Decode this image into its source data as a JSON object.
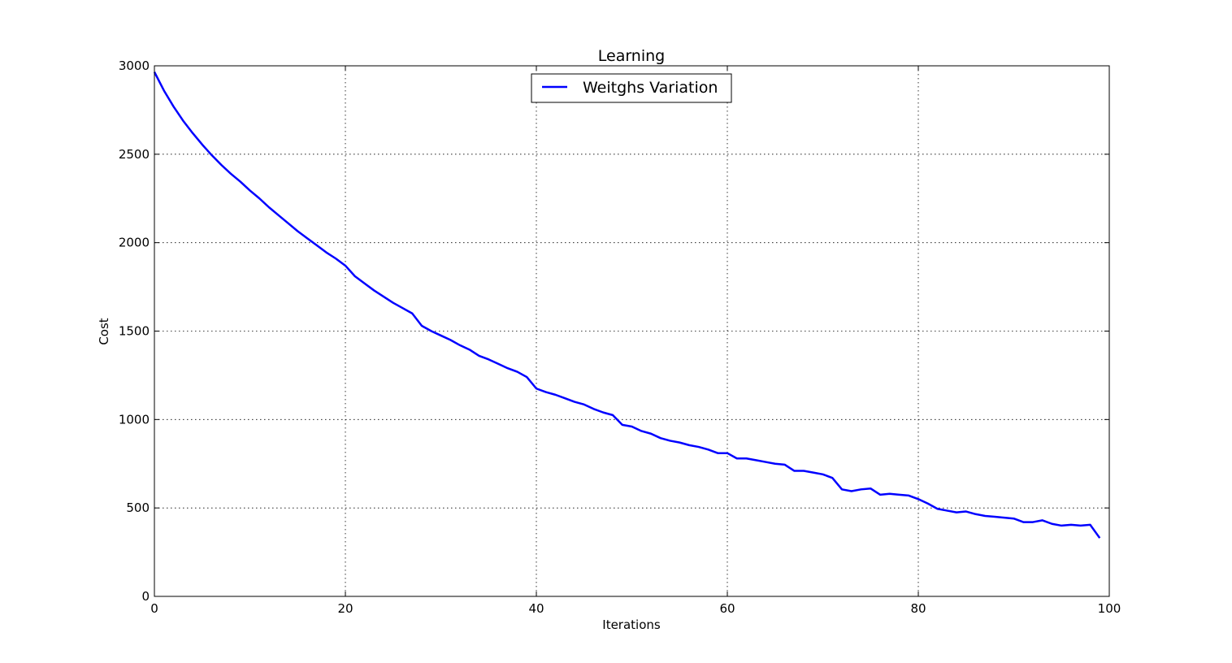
{
  "chart_data": {
    "type": "line",
    "title": "Learning",
    "xlabel": "Iterations",
    "ylabel": "Cost",
    "xlim": [
      0,
      100
    ],
    "ylim": [
      0,
      3000
    ],
    "xticks": [
      0,
      20,
      40,
      60,
      80,
      100
    ],
    "yticks": [
      0,
      500,
      1000,
      1500,
      2000,
      2500,
      3000
    ],
    "xtick_labels": [
      "0",
      "20",
      "40",
      "60",
      "80",
      "100"
    ],
    "ytick_labels": [
      "0",
      "500",
      "1000",
      "1500",
      "2000",
      "2500",
      "3000"
    ],
    "grid": true,
    "legend_position": "upper-center",
    "series": [
      {
        "name": "Weitghs Variation",
        "color": "#0000ff",
        "x": [
          0,
          1,
          2,
          3,
          4,
          5,
          6,
          7,
          8,
          9,
          10,
          11,
          12,
          13,
          14,
          15,
          16,
          17,
          18,
          19,
          20,
          21,
          22,
          23,
          24,
          25,
          26,
          27,
          28,
          29,
          30,
          31,
          32,
          33,
          34,
          35,
          36,
          37,
          38,
          39,
          40,
          41,
          42,
          43,
          44,
          45,
          46,
          47,
          48,
          49,
          50,
          51,
          52,
          53,
          54,
          55,
          56,
          57,
          58,
          59,
          60,
          61,
          62,
          63,
          64,
          65,
          66,
          67,
          68,
          69,
          70,
          71,
          72,
          73,
          74,
          75,
          76,
          77,
          78,
          79,
          80,
          81,
          82,
          83,
          84,
          85,
          86,
          87,
          88,
          89,
          90,
          91,
          92,
          93,
          94,
          95,
          96,
          97,
          98,
          99
        ],
        "y": [
          2965,
          2860,
          2770,
          2690,
          2620,
          2555,
          2495,
          2440,
          2390,
          2345,
          2295,
          2250,
          2200,
          2155,
          2110,
          2065,
          2025,
          1985,
          1945,
          1910,
          1870,
          1810,
          1770,
          1730,
          1695,
          1660,
          1630,
          1600,
          1530,
          1500,
          1475,
          1450,
          1420,
          1395,
          1360,
          1340,
          1315,
          1290,
          1270,
          1240,
          1175,
          1155,
          1140,
          1120,
          1100,
          1085,
          1060,
          1040,
          1025,
          970,
          960,
          935,
          920,
          895,
          880,
          870,
          855,
          845,
          830,
          810,
          810,
          780,
          780,
          770,
          760,
          750,
          745,
          710,
          710,
          700,
          690,
          670,
          605,
          595,
          605,
          610,
          575,
          580,
          575,
          570,
          550,
          525,
          495,
          485,
          475,
          480,
          465,
          455,
          450,
          445,
          440,
          420,
          420,
          430,
          410,
          400,
          405,
          400,
          405,
          330
        ]
      }
    ]
  }
}
